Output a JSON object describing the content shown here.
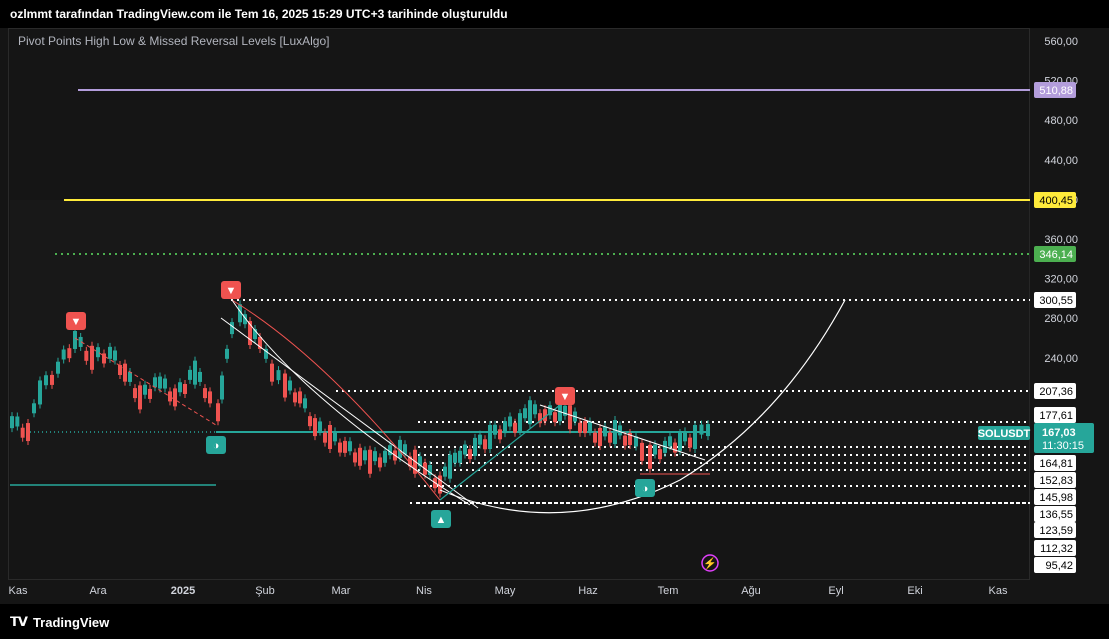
{
  "watermark": "ozlmmt tarafından TradingView.com ile Tem 16, 2025 15:29 UTC+3 tarihinde oluşturuldu",
  "indicator_title": "Pivot Points High Low & Missed Reversal Levels [LuxAlgo]",
  "brand": "TradingView",
  "symbol_label": "SOLUSDT",
  "last_price": "167,03",
  "countdown": "11:30:15",
  "colors": {
    "up": "#26a69a",
    "down": "#ef5350",
    "purple_line": "#b39ddb",
    "yellow_line": "#ffeb3b",
    "green_line": "#4caf50",
    "label_bg_dark": "#000000"
  },
  "price_axis": {
    "ticks": [
      "560,00",
      "520,00",
      "480,00",
      "440,00",
      "400,00",
      "360,00",
      "320,00",
      "280,00",
      "240,00",
      "207,36",
      "177,61",
      "167,03",
      "164,81",
      "152,83",
      "145,98",
      "136,55",
      "123,59",
      "112,32",
      "95,42"
    ],
    "tick_values": [
      560,
      520,
      480,
      440,
      400,
      360,
      320,
      280,
      240
    ]
  },
  "time_axis": {
    "labels": [
      "Kas",
      "Ara",
      "2025",
      "Şub",
      "Mar",
      "Nis",
      "May",
      "Haz",
      "Tem",
      "Ağu",
      "Eyl",
      "Eki",
      "Kas"
    ]
  },
  "levels": [
    {
      "price": 510.88,
      "label": "510,88",
      "color": "#b39ddb",
      "style": "solid",
      "label_bg": "#b39ddb",
      "label_fg": "#ffffff"
    },
    {
      "price": 400.45,
      "label": "400,45",
      "color": "#ffeb3b",
      "style": "solid",
      "label_bg": "#ffeb3b",
      "label_fg": "#000000"
    },
    {
      "price": 346.14,
      "label": "346,14",
      "color": "#4caf50",
      "style": "dotted",
      "label_bg": "#4caf50",
      "label_fg": "#ffffff"
    },
    {
      "price": 300.55,
      "label": "300,55",
      "color": "#ffffff",
      "style": "dotted",
      "label_bg": "#ffffff",
      "label_fg": "#000000"
    },
    {
      "price": 207.36,
      "label": "207,36",
      "color": "#ffffff",
      "style": "dotted",
      "label_bg": "#ffffff",
      "label_fg": "#000000"
    },
    {
      "price": 177.61,
      "label": "177,61",
      "color": "#ffffff",
      "style": "dotted",
      "label_bg": "#ffffff",
      "label_fg": "#000000"
    },
    {
      "price": 164.81,
      "label": "164,81",
      "color": "#ffffff",
      "style": "dotted",
      "label_bg": "#ffffff",
      "label_fg": "#000000"
    },
    {
      "price": 152.83,
      "label": "152,83",
      "color": "#ffffff",
      "style": "dotted",
      "label_bg": "#ffffff",
      "label_fg": "#000000"
    },
    {
      "price": 145.98,
      "label": "145,98",
      "color": "#ffffff",
      "style": "dotted",
      "label_bg": "#ffffff",
      "label_fg": "#000000"
    },
    {
      "price": 136.55,
      "label": "136,55",
      "color": "#ffffff",
      "style": "dotted",
      "label_bg": "#ffffff",
      "label_fg": "#000000"
    },
    {
      "price": 123.59,
      "label": "123,59",
      "color": "#ffffff",
      "style": "dotted",
      "label_bg": "#ffffff",
      "label_fg": "#000000"
    },
    {
      "price": 112.32,
      "label": "112,32",
      "color": "#ffffff",
      "style": "dotted",
      "label_bg": "#ffffff",
      "label_fg": "#000000"
    },
    {
      "price": 95.42,
      "label": "95,42",
      "color": "#ffffff",
      "style": "dotted",
      "label_bg": "#ffffff",
      "label_fg": "#000000"
    }
  ],
  "chart_data": {
    "type": "line",
    "title": "",
    "series": [
      {
        "name": "SOLUSDT",
        "x": [
          "Kas",
          "Ara",
          "2025",
          "Şub",
          "Mar",
          "Nis",
          "May",
          "Haz",
          "Tem"
        ],
        "y": [
          175,
          255,
          195,
          265,
          145,
          118,
          170,
          170,
          167.03
        ]
      }
    ],
    "ylim": [
      80,
      575
    ],
    "pivot_markers": [
      {
        "type": "high",
        "label": "▼",
        "x": "Ara",
        "price": 262
      },
      {
        "type": "high",
        "label": "▼",
        "x": "Şub",
        "price": 295
      },
      {
        "type": "high",
        "label": "▼",
        "x": "May",
        "price": 187
      },
      {
        "type": "low",
        "label": "▲",
        "x": "Nis",
        "price": 112
      },
      {
        "type": "missed",
        "label": "◑",
        "x": "2025",
        "price": 160
      },
      {
        "type": "missed",
        "label": "◑",
        "x": "Tem",
        "price": 128
      }
    ]
  }
}
